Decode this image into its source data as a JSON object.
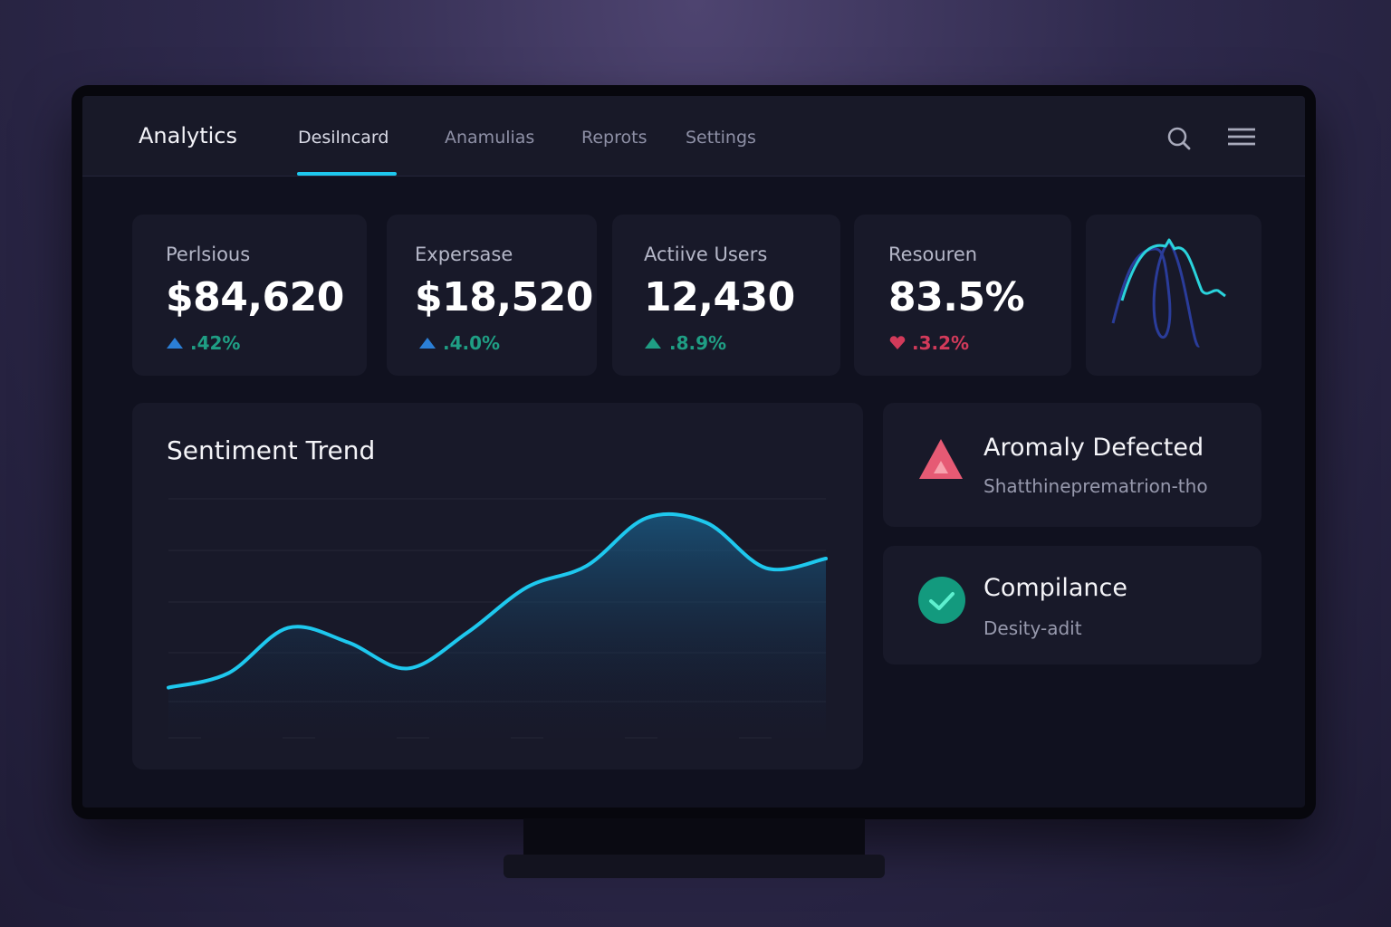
{
  "nav": {
    "brand": "Analytics",
    "tabs": [
      "Desilncard",
      "Anamulias",
      "Reprots",
      "Settings"
    ]
  },
  "kpis": [
    {
      "label": "Perlsious",
      "value": "$84,620",
      "change": ".42%"
    },
    {
      "label": "Expersase",
      "value": "$18,520",
      "change": ".4.0%"
    },
    {
      "label": "Actiive Users",
      "value": "12,430",
      "change": ".8.9%"
    },
    {
      "label": "Resouren",
      "value": "83.5%",
      "change": ".3.2%"
    }
  ],
  "sentiment": {
    "title": "Sentiment Trend",
    "values": [
      21,
      27,
      46,
      40,
      29,
      44,
      63,
      72,
      92,
      90,
      71,
      75
    ],
    "ylim": [
      0,
      100
    ],
    "color": "#1ec8ee"
  },
  "alerts": [
    {
      "title": "Aromaly Defected",
      "text": "Shatthineprematrion-tho"
    },
    {
      "title": "Compilance",
      "text": "Desity-adit"
    }
  ]
}
